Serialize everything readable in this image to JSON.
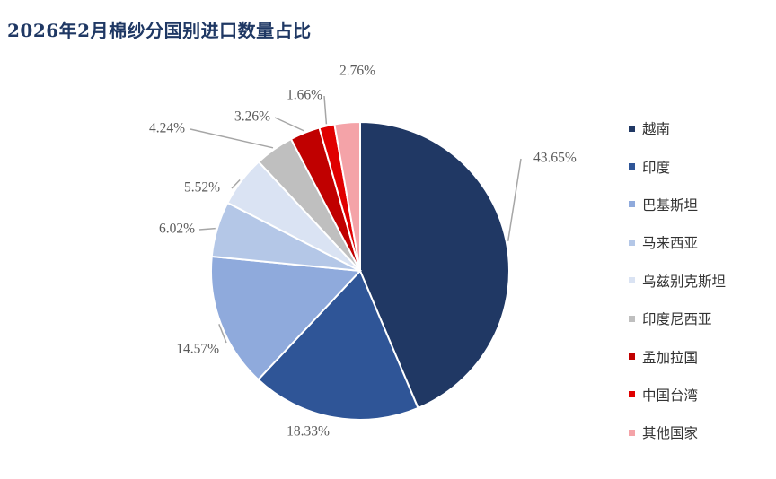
{
  "chart_data": {
    "type": "pie",
    "title": "2026年2月棉纱分国别进口数量占比",
    "categories": [
      "越南",
      "印度",
      "巴基斯坦",
      "马来西亚",
      "乌兹别克斯坦",
      "印度尼西亚",
      "孟加拉国",
      "中国台湾",
      "其他国家"
    ],
    "values": [
      43.65,
      18.33,
      14.57,
      6.02,
      5.52,
      4.24,
      3.26,
      1.66,
      2.76
    ],
    "labels": [
      "43.65%",
      "18.33%",
      "14.57%",
      "6.02%",
      "5.52%",
      "4.24%",
      "3.26%",
      "1.66%",
      "2.76%"
    ],
    "colors": [
      "#203864",
      "#2f5597",
      "#8faadc",
      "#b4c7e7",
      "#dae3f3",
      "#bfbfbf",
      "#c00000",
      "#e00000",
      "#f4a3a8"
    ],
    "legend_position": "right"
  }
}
